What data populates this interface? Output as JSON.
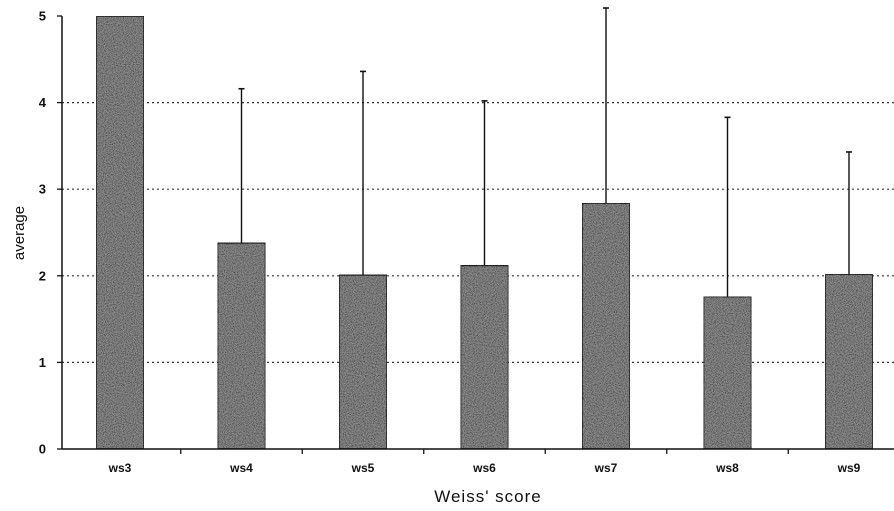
{
  "chart_data": {
    "type": "bar",
    "title": "",
    "xlabel": "Weiss' score",
    "ylabel": "average",
    "categories": [
      "ws3",
      "ws4",
      "ws5",
      "ws6",
      "ws7",
      "ws8",
      "ws9"
    ],
    "values": [
      5.0,
      2.38,
      2.01,
      2.12,
      2.84,
      1.76,
      2.02
    ],
    "error_upper": [
      5.0,
      4.16,
      4.36,
      4.02,
      5.1,
      3.83,
      3.43
    ],
    "ylim": [
      0,
      5
    ],
    "yticks": [
      0,
      1,
      2,
      3,
      4,
      5
    ],
    "grid": true,
    "legend": "none",
    "colors": {
      "bar_fill": "#8c8c8c",
      "bar_stroke": "#111111",
      "grid": "#333333",
      "axis": "#111111"
    }
  }
}
